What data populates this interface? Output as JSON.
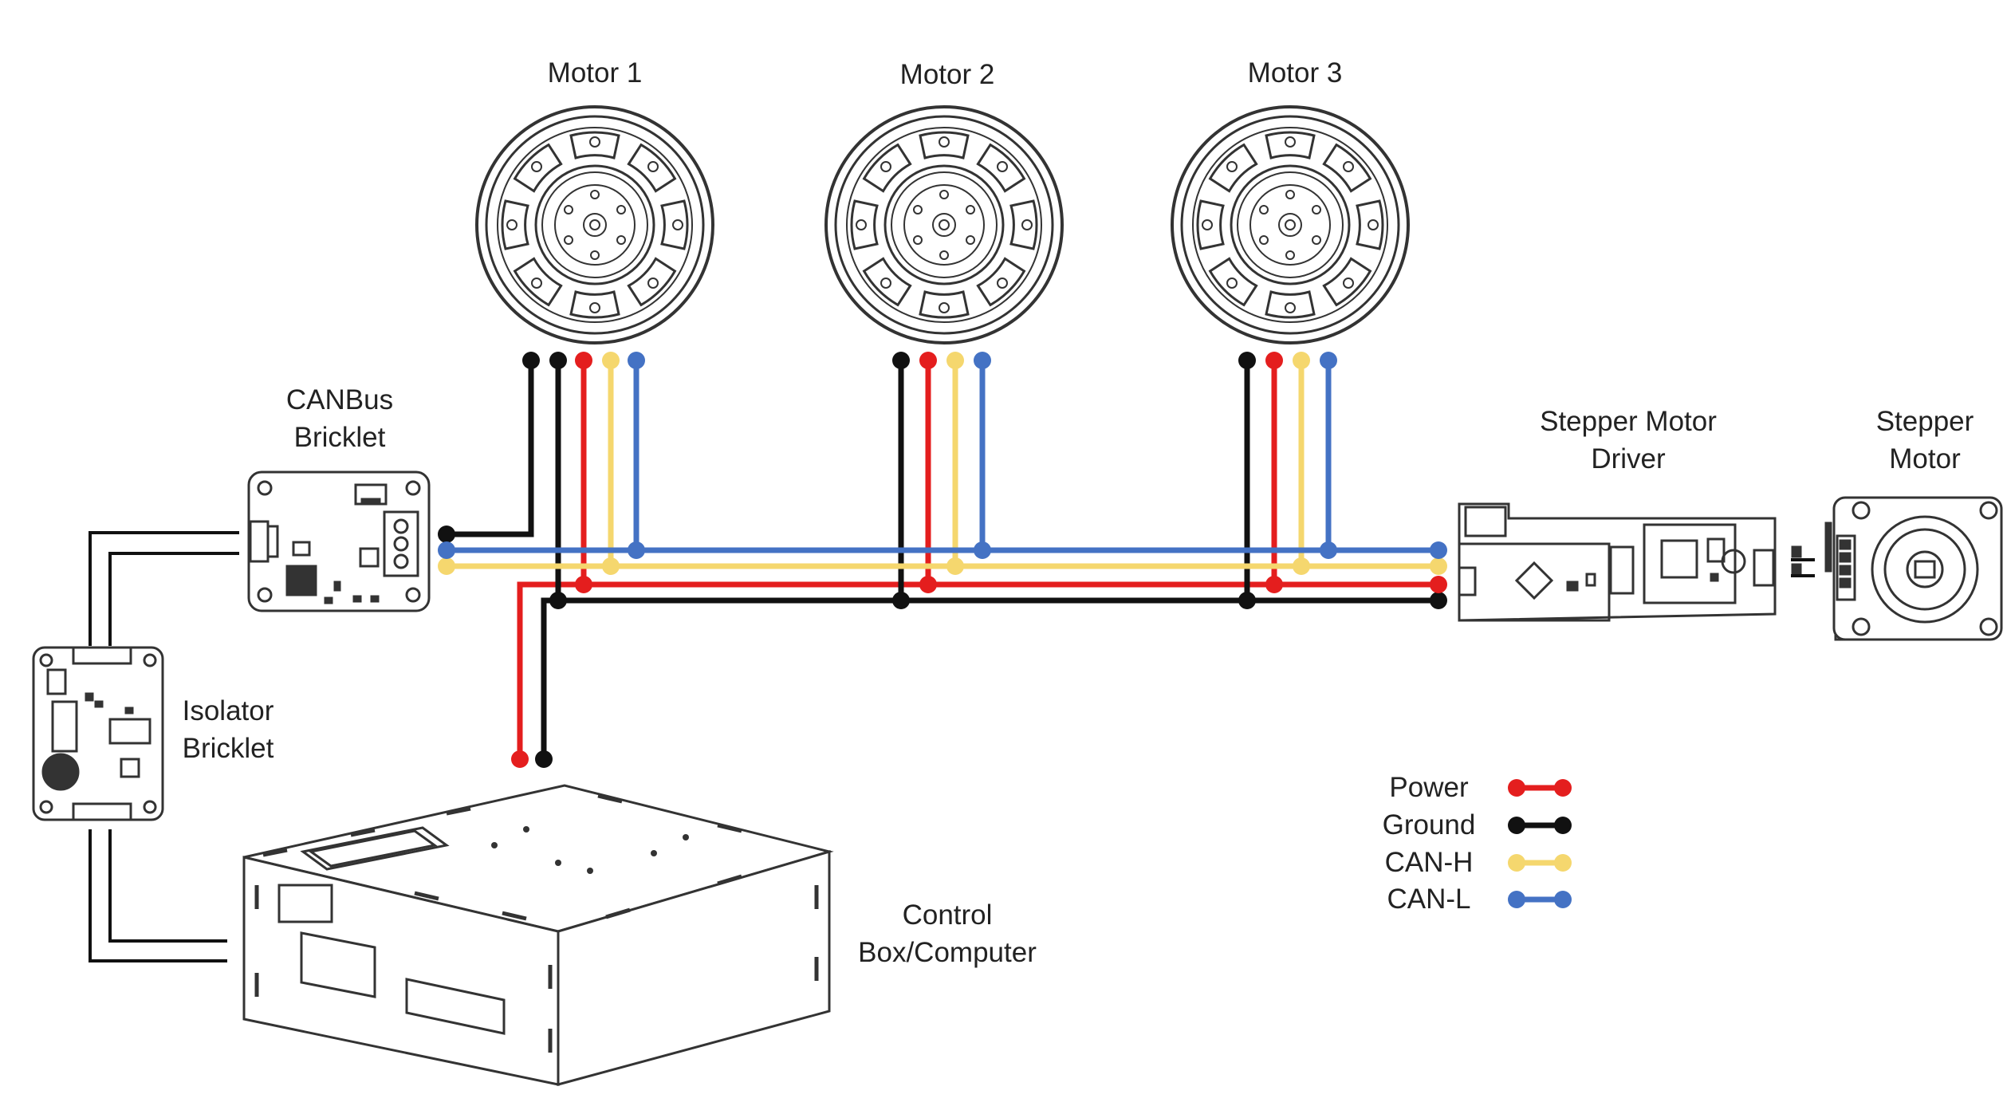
{
  "components": {
    "motor1": "Motor 1",
    "motor2": "Motor 2",
    "motor3": "Motor 3",
    "canbus": [
      "CANBus",
      "Bricklet"
    ],
    "isolator": [
      "Isolator",
      "Bricklet"
    ],
    "stepper_driver": [
      "Stepper Motor",
      "Driver"
    ],
    "stepper_motor": [
      "Stepper",
      "Motor"
    ],
    "control_box": [
      "Control",
      "Box/Computer"
    ]
  },
  "legend": [
    {
      "label": "Power",
      "color": "#e41e1e"
    },
    {
      "label": "Ground",
      "color": "#111111"
    },
    {
      "label": "CAN-H",
      "color": "#f5d76e"
    },
    {
      "label": "CAN-L",
      "color": "#4472c4"
    }
  ],
  "colors": {
    "power": "#e41e1e",
    "ground": "#111111",
    "can_h": "#f5d76e",
    "can_l": "#4472c4",
    "outline": "#333333"
  }
}
